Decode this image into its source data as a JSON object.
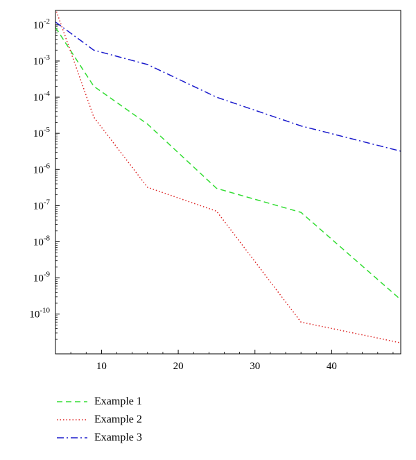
{
  "chart_data": {
    "type": "line",
    "xscale": "linear",
    "yscale": "log",
    "xlim": [
      4,
      49
    ],
    "ylim_exp": [
      -11.1,
      -1.6
    ],
    "x_ticks": [
      10,
      20,
      30,
      40
    ],
    "y_ticks": [
      {
        "exp": -2,
        "base": "10",
        "power": "-2"
      },
      {
        "exp": -3,
        "base": "10",
        "power": "-3"
      },
      {
        "exp": -4,
        "base": "10",
        "power": "-4"
      },
      {
        "exp": -5,
        "base": "10",
        "power": "-5"
      },
      {
        "exp": -6,
        "base": "10",
        "power": "-6"
      },
      {
        "exp": -7,
        "base": "10",
        "power": "-7"
      },
      {
        "exp": -8,
        "base": "10",
        "power": "-8"
      },
      {
        "exp": -9,
        "base": "10",
        "power": "-9"
      },
      {
        "exp": -10,
        "base": "10",
        "power": "-10"
      }
    ],
    "legend_placement": "below",
    "series": [
      {
        "name": "Example 1",
        "color": "#33dd33",
        "dash": "dashed",
        "x": [
          4,
          9,
          16,
          25,
          36,
          49
        ],
        "y": [
          0.0085,
          0.0002,
          1.8e-05,
          3e-07,
          6.5e-08,
          2.5e-10
        ]
      },
      {
        "name": "Example 2",
        "color": "#dd2222",
        "dash": "dotted",
        "x": [
          4,
          9,
          16,
          25,
          36,
          49
        ],
        "y": [
          0.028,
          2.8e-05,
          3.2e-07,
          7e-08,
          6e-11,
          1.6e-11
        ]
      },
      {
        "name": "Example 3",
        "color": "#1a1acc",
        "dash": "dashdot",
        "x": [
          4,
          9,
          16,
          25,
          36,
          49
        ],
        "y": [
          0.012,
          0.002,
          0.0008,
          0.0001,
          1.6e-05,
          3.2e-06
        ]
      }
    ]
  }
}
